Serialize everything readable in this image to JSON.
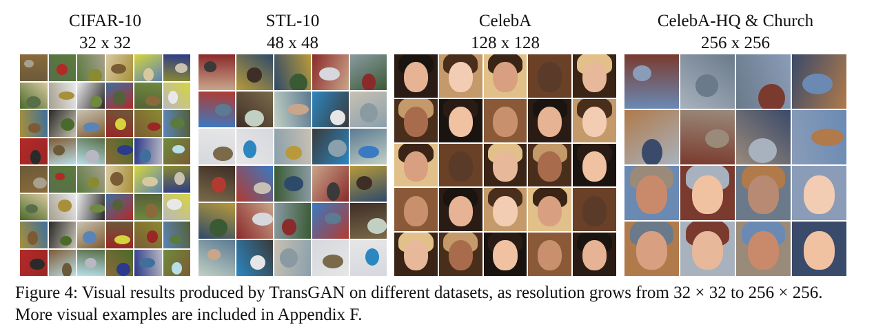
{
  "panels": [
    {
      "id": "cifar",
      "name": "CIFAR-10",
      "resolution": "32 x 32",
      "rows": 8,
      "cols": 6,
      "palette": [
        "#6b5a3a",
        "#a7a08e",
        "#c9c2b0",
        "#8a6a3a",
        "#d6d43c",
        "#b8b8c2",
        "#b22a28",
        "#586e48",
        "#e8e8ea",
        "#9a2626",
        "#2b3a8a",
        "#8a8a30",
        "#a8903a",
        "#7e5a34",
        "#5a7a3e",
        "#3f6f9a",
        "#7a5c34",
        "#6f8a3e",
        "#4a6a2a",
        "#2a2a2a",
        "#b8dfe8",
        "#d8c8a0",
        "#546038",
        "#5b84b6"
      ]
    },
    {
      "id": "stl",
      "name": "STL-10",
      "resolution": "48 x 48",
      "rows": 6,
      "cols": 5,
      "palette": [
        "#c9a58a",
        "#3a3a3a",
        "#2c86c0",
        "#8a2a2a",
        "#b23a30",
        "#e6e6e6",
        "#3e2e26",
        "#b89a3a",
        "#5c7a92",
        "#c8c0b2",
        "#8a9aa2",
        "#3a5a34",
        "#8aa0ac",
        "#c2d0c4",
        "#2e4a6a",
        "#7a6a4a",
        "#d6d8de",
        "#3a7ac2"
      ]
    },
    {
      "id": "celeba",
      "name": "CelebA",
      "resolution": "128 x 128",
      "rows": 5,
      "cols": 5,
      "palette": [
        "#2a1c14",
        "#6a4026",
        "#1a1410",
        "#c49a6a",
        "#3a2416",
        "#8a5a38",
        "#e2c08a",
        "#4a2e1c"
      ],
      "skins": [
        "#e6b394",
        "#c8906c",
        "#f0c2a2",
        "#a86c4c",
        "#e8b89a",
        "#5a3a28",
        "#d8a080",
        "#f2cdb4"
      ]
    },
    {
      "id": "celebahq",
      "name": "CelebA-HQ & Church",
      "resolution": "256 x 256",
      "rows": 4,
      "cols": 4,
      "palette": [
        "#6a8ab4",
        "#8a9cb8",
        "#9a8a7a",
        "#7a3a2e",
        "#b07a4a",
        "#3a4a6a",
        "#6a7a8a",
        "#a8b2be"
      ],
      "skins": [
        "#d8a080",
        "#e8b89a",
        "#c88a6a",
        "#f0c2a2",
        "#b88a74",
        "#f2cdb4"
      ]
    }
  ],
  "caption": "Figure 4: Visual results produced by TransGAN on different datasets, as resolution grows from 32 × 32 to 256 × 256. More visual examples are included in Appendix F."
}
